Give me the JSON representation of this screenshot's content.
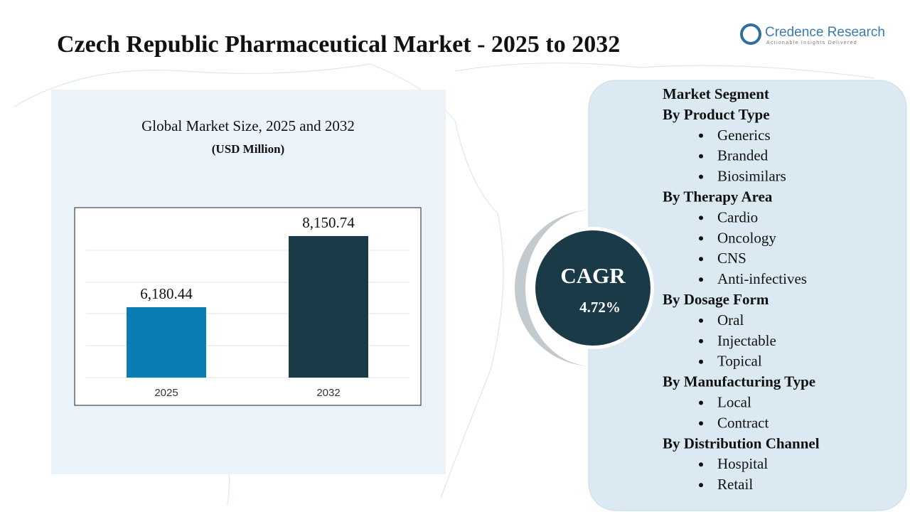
{
  "header": {
    "title": "Czech Republic Pharmaceutical Market - 2025 to 2032",
    "logo_name": "Credence Research",
    "logo_tagline": "Actionable Insights Delivered"
  },
  "chart_data": {
    "type": "bar",
    "title": "Global Market Size, 2025 and 2032",
    "subtitle": "(USD Million)",
    "categories": [
      "2025",
      "2032"
    ],
    "values": [
      6180.44,
      8150.74
    ],
    "value_labels": [
      "6,180.44",
      "8,150.74"
    ],
    "colors": [
      "#0a7db3",
      "#1b3a48"
    ],
    "ylim": [
      4230,
      8780
    ]
  },
  "cagr": {
    "label": "CAGR",
    "value": "4.72%"
  },
  "segments": {
    "title": "Market Segment",
    "groups": [
      {
        "name": "By Product Type",
        "items": [
          "Generics",
          "Branded",
          "Biosimilars"
        ]
      },
      {
        "name": "By Therapy Area",
        "items": [
          "Cardio",
          "Oncology",
          "CNS",
          "Anti-infectives"
        ]
      },
      {
        "name": "By Dosage Form",
        "items": [
          "Oral",
          "Injectable",
          "Topical"
        ]
      },
      {
        "name": "By Manufacturing Type",
        "items": [
          "Local",
          "Contract"
        ]
      },
      {
        "name": "By Distribution Channel",
        "items": [
          "Hospital",
          "Retail"
        ]
      }
    ]
  }
}
